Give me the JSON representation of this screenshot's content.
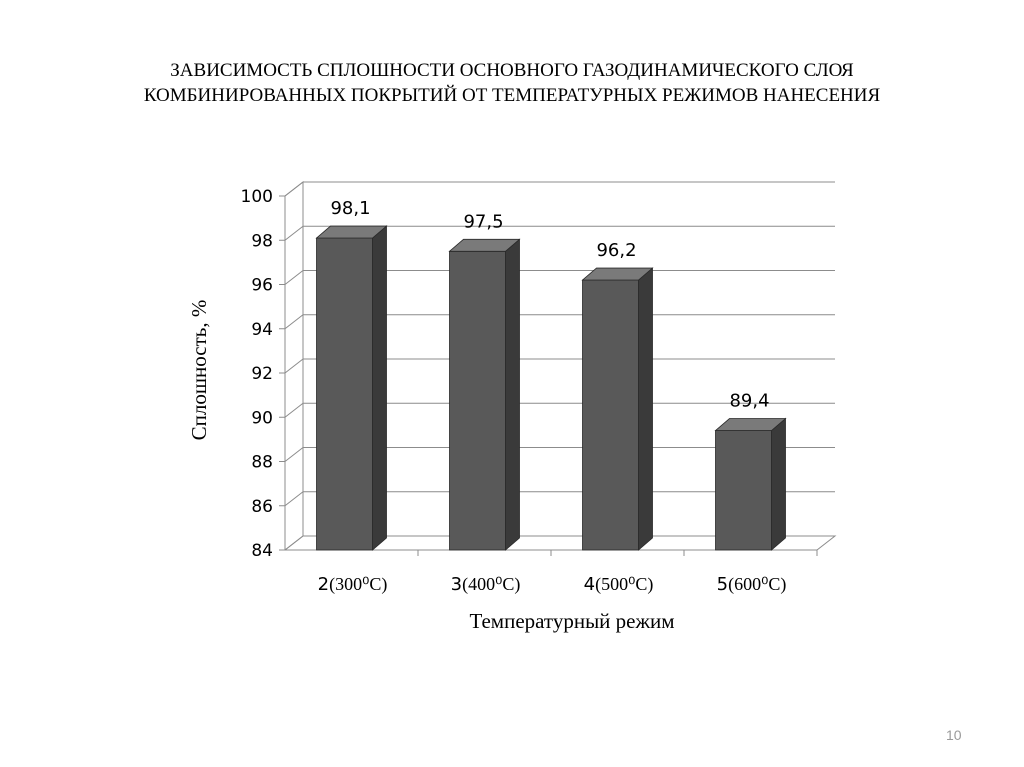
{
  "slide": {
    "title_line1": "ЗАВИСИМОСТЬ СПЛОШНОСТИ ОСНОВНОГО ГАЗОДИНАМИЧЕСКОГО СЛОЯ",
    "title_line2": "КОМБИНИРОВАННЫХ ПОКРЫТИЙ ОТ ТЕМПЕРАТУРНЫХ РЕЖИМОВ НАНЕСЕНИЯ",
    "page_number": "10"
  },
  "chart_data": {
    "type": "bar",
    "style": "3d-column",
    "categories": [
      "2 (300⁰C)",
      "3(400⁰C)",
      "4 (500⁰C)",
      "5(600⁰C)"
    ],
    "category_numbers": [
      "2",
      "3",
      "4",
      "5"
    ],
    "category_temps": [
      "(300⁰C)",
      "(400⁰C)",
      "(500⁰C)",
      "(600⁰C)"
    ],
    "values": [
      98.1,
      97.5,
      96.2,
      89.4
    ],
    "data_labels": [
      "98,1",
      "97,5",
      "96,2",
      "89,4"
    ],
    "xlabel": "Температурный режим",
    "ylabel": "Сплошность, %",
    "ylim": [
      84,
      100
    ],
    "yticks": [
      84,
      86,
      88,
      90,
      92,
      94,
      96,
      98,
      100
    ],
    "grid": true,
    "legend": "none",
    "colors": {
      "bar_front": "#595959",
      "bar_side": "#3a3a3a",
      "bar_top": "#7a7a7a",
      "grid": "#8c8c8c"
    }
  }
}
